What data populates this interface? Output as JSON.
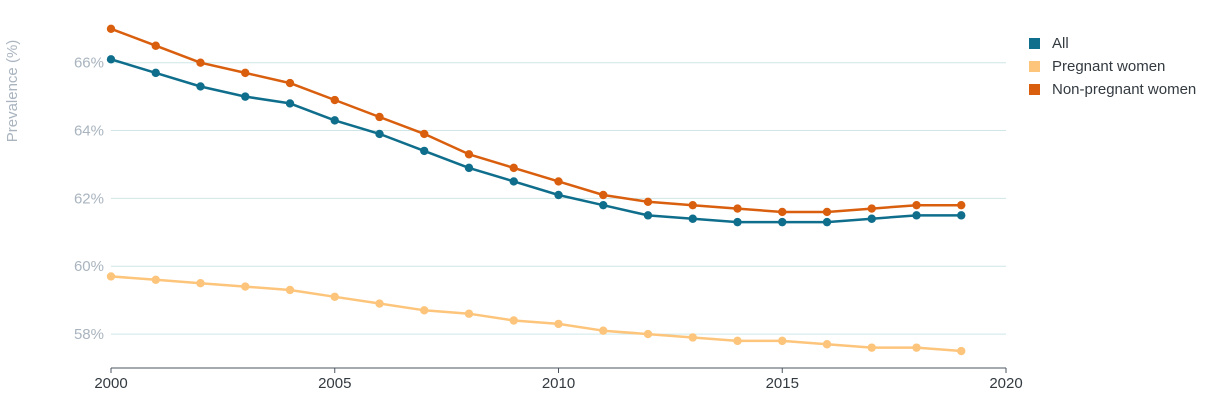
{
  "chart_data": {
    "type": "line",
    "ylabel": "Prevalence (%)",
    "xlim": [
      2000,
      2020
    ],
    "ylim": [
      57,
      67.2
    ],
    "x_ticks": [
      "2000",
      "2005",
      "2010",
      "2015",
      "2020"
    ],
    "y_ticks": [
      "58%",
      "60%",
      "62%",
      "64%",
      "66%"
    ],
    "grid": "horizontal",
    "legend_position": "top-right",
    "x": [
      2000,
      2001,
      2002,
      2003,
      2004,
      2005,
      2006,
      2007,
      2008,
      2009,
      2010,
      2011,
      2012,
      2013,
      2014,
      2015,
      2016,
      2017,
      2018,
      2019
    ],
    "series": [
      {
        "name": "All",
        "color": "#0f6e8c",
        "values": [
          66.1,
          65.7,
          65.3,
          65.0,
          64.8,
          64.3,
          63.9,
          63.4,
          62.9,
          62.5,
          62.1,
          61.8,
          61.5,
          61.4,
          61.3,
          61.3,
          61.3,
          61.4,
          61.5,
          61.5
        ]
      },
      {
        "name": "Pregnant women",
        "color": "#fdc57b",
        "values": [
          59.7,
          59.6,
          59.5,
          59.4,
          59.3,
          59.1,
          58.9,
          58.7,
          58.6,
          58.4,
          58.3,
          58.1,
          58.0,
          57.9,
          57.8,
          57.8,
          57.7,
          57.6,
          57.6,
          57.5
        ]
      },
      {
        "name": "Non-pregnant women",
        "color": "#d95f0e",
        "values": [
          67.0,
          66.5,
          66.0,
          65.7,
          65.4,
          64.9,
          64.4,
          63.9,
          63.3,
          62.9,
          62.5,
          62.1,
          61.9,
          61.8,
          61.7,
          61.6,
          61.6,
          61.7,
          61.8,
          61.8
        ]
      }
    ]
  }
}
